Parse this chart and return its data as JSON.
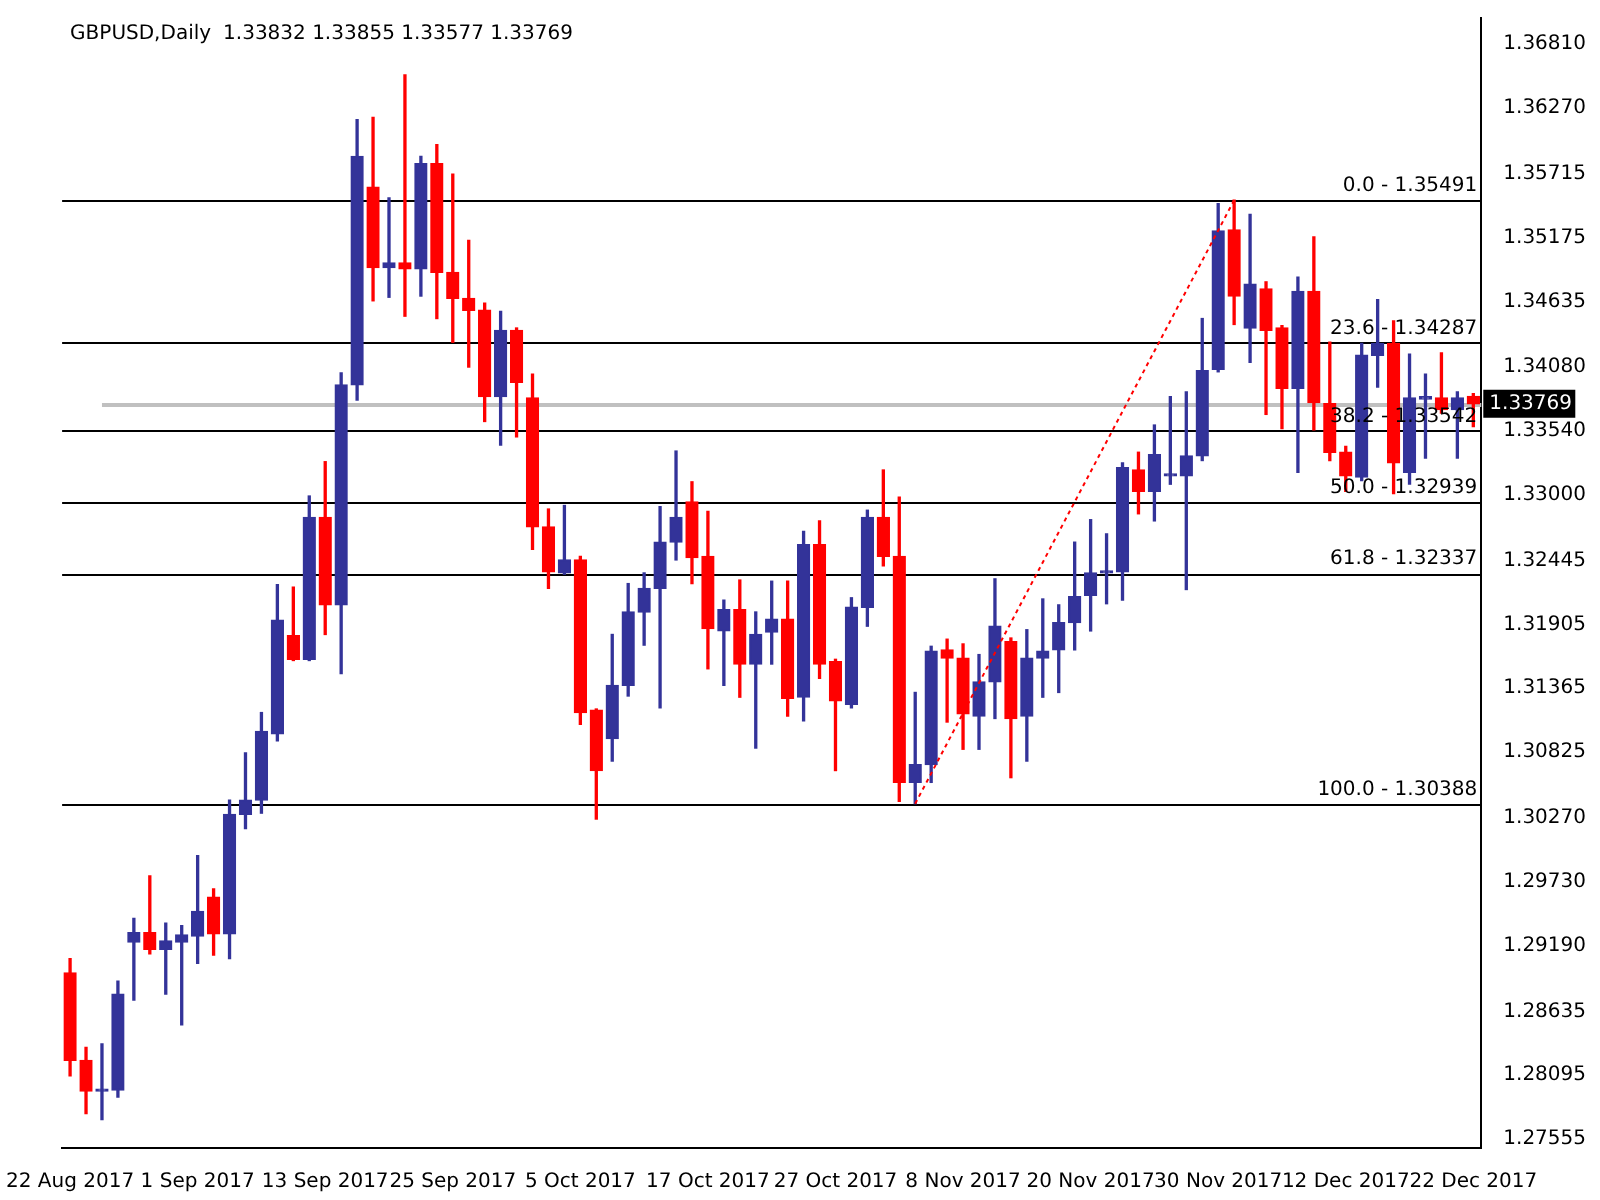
{
  "chart_data": {
    "type": "candlestick",
    "title": "GBPUSD,Daily",
    "subtitle": "1.33832 1.33855 1.33577 1.33769",
    "categories": [
      "22 Aug 2017",
      null,
      null,
      null,
      null,
      null,
      null,
      null,
      "1 Sep 2017",
      null,
      null,
      null,
      null,
      null,
      null,
      null,
      "13 Sep 2017",
      null,
      null,
      null,
      null,
      null,
      null,
      null,
      "25 Sep 2017",
      null,
      null,
      null,
      null,
      null,
      null,
      null,
      "5 Oct 2017",
      null,
      null,
      null,
      null,
      null,
      null,
      null,
      "17 Oct 2017",
      null,
      null,
      null,
      null,
      null,
      null,
      null,
      "27 Oct 2017",
      null,
      null,
      null,
      null,
      null,
      null,
      null,
      "8 Nov 2017",
      null,
      null,
      null,
      null,
      null,
      null,
      null,
      "20 Nov 2017",
      null,
      null,
      null,
      null,
      null,
      null,
      null,
      "30 Nov 2017",
      null,
      null,
      null,
      null,
      null,
      null,
      null,
      "12 Dec 2017",
      null,
      null,
      null,
      null,
      null,
      null,
      null,
      "22 Dec 2017"
    ],
    "ohlc": [
      [
        1.2896,
        1.2908,
        1.2809,
        1.2822
      ],
      [
        1.2822,
        1.2833,
        1.2777,
        1.2796
      ],
      [
        1.2796,
        1.2836,
        1.2772,
        1.2797
      ],
      [
        1.2797,
        1.2889,
        1.2791,
        1.2878
      ],
      [
        1.2922,
        1.2942,
        1.2873,
        1.293
      ],
      [
        1.293,
        1.2978,
        1.2912,
        1.2916
      ],
      [
        1.2916,
        1.2938,
        1.2878,
        1.2923
      ],
      [
        1.2922,
        1.2936,
        1.2852,
        1.2928
      ],
      [
        1.2927,
        1.2995,
        1.2904,
        1.2948
      ],
      [
        1.296,
        1.2967,
        1.2911,
        1.2929
      ],
      [
        1.2929,
        1.3042,
        1.2908,
        1.303
      ],
      [
        1.303,
        1.3082,
        1.3018,
        1.3042
      ],
      [
        1.3042,
        1.3116,
        1.3031,
        1.31
      ],
      [
        1.3098,
        1.3224,
        1.3092,
        1.3194
      ],
      [
        1.3181,
        1.3222,
        1.316,
        1.3161
      ],
      [
        1.3161,
        1.3299,
        1.316,
        1.3281
      ],
      [
        1.3281,
        1.3328,
        1.3182,
        1.3207
      ],
      [
        1.3207,
        1.3403,
        1.3149,
        1.3393
      ],
      [
        1.3393,
        1.3617,
        1.338,
        1.3586
      ],
      [
        1.356,
        1.3619,
        1.3464,
        1.3492
      ],
      [
        1.3492,
        1.3551,
        1.3467,
        1.3496
      ],
      [
        1.3496,
        1.3655,
        1.3451,
        1.3491
      ],
      [
        1.3491,
        1.3586,
        1.3468,
        1.358
      ],
      [
        1.358,
        1.3596,
        1.3449,
        1.3488
      ],
      [
        1.3488,
        1.3571,
        1.3429,
        1.3466
      ],
      [
        1.3466,
        1.3515,
        1.3408,
        1.3456
      ],
      [
        1.3456,
        1.3462,
        1.3362,
        1.3383
      ],
      [
        1.3383,
        1.3455,
        1.3342,
        1.3439
      ],
      [
        1.3439,
        1.3441,
        1.3349,
        1.3395
      ],
      [
        1.3382,
        1.3402,
        1.3254,
        1.3273
      ],
      [
        1.3273,
        1.3288,
        1.3221,
        1.3235
      ],
      [
        1.3234,
        1.3291,
        1.3233,
        1.3245
      ],
      [
        1.3245,
        1.3248,
        1.3106,
        1.3116
      ],
      [
        1.3118,
        1.3119,
        1.3026,
        1.3067
      ],
      [
        1.3094,
        1.3182,
        1.3075,
        1.3139
      ],
      [
        1.3139,
        1.3225,
        1.313,
        1.3201
      ],
      [
        1.3201,
        1.3234,
        1.3173,
        1.3221
      ],
      [
        1.3221,
        1.329,
        1.312,
        1.326
      ],
      [
        1.326,
        1.3337,
        1.3245,
        1.3281
      ],
      [
        1.3294,
        1.3311,
        1.3225,
        1.3247
      ],
      [
        1.3248,
        1.3286,
        1.3153,
        1.3187
      ],
      [
        1.3185,
        1.3211,
        1.3139,
        1.3203
      ],
      [
        1.3203,
        1.3228,
        1.3129,
        1.3157
      ],
      [
        1.3157,
        1.3201,
        1.3086,
        1.3182
      ],
      [
        1.3184,
        1.3227,
        1.3157,
        1.3195
      ],
      [
        1.3195,
        1.3227,
        1.3113,
        1.3128
      ],
      [
        1.3129,
        1.3269,
        1.3109,
        1.3258
      ],
      [
        1.3258,
        1.3278,
        1.3145,
        1.3157
      ],
      [
        1.3159,
        1.3161,
        1.3067,
        1.3126
      ],
      [
        1.3123,
        1.3213,
        1.312,
        1.3205
      ],
      [
        1.3205,
        1.3287,
        1.3189,
        1.3281
      ],
      [
        1.3281,
        1.3321,
        1.324,
        1.3248
      ],
      [
        1.3248,
        1.3298,
        1.3041,
        1.3057
      ],
      [
        1.3057,
        1.3133,
        1.3039,
        1.3072
      ],
      [
        1.3072,
        1.3172,
        1.3057,
        1.3168
      ],
      [
        1.3169,
        1.3178,
        1.3108,
        1.3162
      ],
      [
        1.3162,
        1.3174,
        1.3085,
        1.3115
      ],
      [
        1.3113,
        1.3165,
        1.3085,
        1.3142
      ],
      [
        1.3142,
        1.3229,
        1.3111,
        1.3189
      ],
      [
        1.3176,
        1.3179,
        1.3061,
        1.3111
      ],
      [
        1.3113,
        1.3186,
        1.3075,
        1.3162
      ],
      [
        1.3162,
        1.3212,
        1.3129,
        1.3168
      ],
      [
        1.3169,
        1.3207,
        1.3133,
        1.3192
      ],
      [
        1.3192,
        1.326,
        1.3169,
        1.3214
      ],
      [
        1.3215,
        1.3279,
        1.3185,
        1.3234
      ],
      [
        1.3234,
        1.3267,
        1.3208,
        1.3235
      ],
      [
        1.3235,
        1.3327,
        1.3211,
        1.3323
      ],
      [
        1.3321,
        1.3336,
        1.3284,
        1.3303
      ],
      [
        1.3303,
        1.3359,
        1.3278,
        1.3334
      ],
      [
        1.3316,
        1.3383,
        1.3309,
        1.3317
      ],
      [
        1.3316,
        1.3387,
        1.322,
        1.3333
      ],
      [
        1.3333,
        1.3449,
        1.3329,
        1.3405
      ],
      [
        1.3406,
        1.3546,
        1.3404,
        1.3523
      ],
      [
        1.3524,
        1.3549,
        1.3444,
        1.3468
      ],
      [
        1.3441,
        1.3537,
        1.3412,
        1.3478
      ],
      [
        1.3474,
        1.348,
        1.3368,
        1.3439
      ],
      [
        1.3441,
        1.3443,
        1.3356,
        1.339
      ],
      [
        1.339,
        1.3484,
        1.3319,
        1.3472
      ],
      [
        1.3472,
        1.3518,
        1.3355,
        1.3378
      ],
      [
        1.3377,
        1.3429,
        1.3329,
        1.3336
      ],
      [
        1.3336,
        1.3341,
        1.3303,
        1.3316
      ],
      [
        1.3315,
        1.3428,
        1.3312,
        1.3418
      ],
      [
        1.3418,
        1.3465,
        1.3391,
        1.3428
      ],
      [
        1.3428,
        1.3447,
        1.3301,
        1.3327
      ],
      [
        1.3319,
        1.3419,
        1.3309,
        1.3382
      ],
      [
        1.3381,
        1.3402,
        1.3331,
        1.3383
      ],
      [
        1.3382,
        1.342,
        1.3369,
        1.3372
      ],
      [
        1.3372,
        1.3387,
        1.3331,
        1.3382
      ],
      [
        1.33832,
        1.33855,
        1.33577,
        1.33769
      ]
    ],
    "colors": [
      "#ff0000",
      "#ff0000",
      "#333399",
      "#333399",
      "#333399",
      "#ff0000",
      "#333399",
      "#333399",
      "#333399",
      "#ff0000",
      "#333399",
      "#333399",
      "#333399",
      "#333399",
      "#ff0000",
      "#333399",
      "#ff0000",
      "#333399",
      "#333399",
      "#ff0000",
      "#333399",
      "#ff0000",
      "#333399",
      "#ff0000",
      "#ff0000",
      "#ff0000",
      "#ff0000",
      "#333399",
      "#ff0000",
      "#ff0000",
      "#ff0000",
      "#333399",
      "#ff0000",
      "#ff0000",
      "#333399",
      "#333399",
      "#333399",
      "#333399",
      "#333399",
      "#ff0000",
      "#ff0000",
      "#333399",
      "#ff0000",
      "#333399",
      "#333399",
      "#ff0000",
      "#333399",
      "#ff0000",
      "#ff0000",
      "#333399",
      "#333399",
      "#ff0000",
      "#ff0000",
      "#333399",
      "#333399",
      "#ff0000",
      "#ff0000",
      "#333399",
      "#333399",
      "#ff0000",
      "#333399",
      "#333399",
      "#333399",
      "#333399",
      "#333399",
      "#333399",
      "#333399",
      "#ff0000",
      "#333399",
      "#333399",
      "#333399",
      "#333399",
      "#333399",
      "#ff0000",
      "#333399",
      "#ff0000",
      "#ff0000",
      "#333399",
      "#ff0000",
      "#ff0000",
      "#ff0000",
      "#333399",
      "#333399",
      "#ff0000",
      "#333399",
      "#333399",
      "#ff0000",
      "#333399",
      "#ff0000"
    ],
    "series": [
      {
        "type": "line",
        "color": "#ff0000",
        "line_style": "dotted",
        "marker": "none",
        "values": [
          null,
          null,
          null,
          null,
          null,
          null,
          null,
          null,
          null,
          null,
          null,
          null,
          null,
          null,
          null,
          null,
          null,
          null,
          null,
          null,
          null,
          null,
          null,
          null,
          null,
          null,
          null,
          null,
          null,
          null,
          null,
          null,
          null,
          null,
          null,
          null,
          null,
          null,
          null,
          null,
          null,
          null,
          null,
          null,
          null,
          null,
          null,
          null,
          null,
          null,
          null,
          null,
          null,
          1.3039,
          null,
          null,
          null,
          null,
          null,
          null,
          null,
          null,
          null,
          null,
          null,
          null,
          null,
          null,
          null,
          null,
          null,
          null,
          null,
          1.3549,
          null,
          null,
          null,
          null,
          null,
          null,
          null,
          null,
          null,
          null,
          null,
          null,
          null,
          null,
          null
        ]
      }
    ],
    "ylim": [
      1.2748,
      1.3703
    ],
    "yticks": [
      {
        "value": 1.3681,
        "label": "1.36810"
      },
      {
        "value": 1.3627,
        "label": "1.36270"
      },
      {
        "value": 1.35715,
        "label": "1.35715"
      },
      {
        "value": 1.35175,
        "label": "1.35175"
      },
      {
        "value": 1.34635,
        "label": "1.34635"
      },
      {
        "value": 1.3408,
        "label": "1.34080"
      },
      {
        "value": 1.3354,
        "label": "1.33540"
      },
      {
        "value": 1.33,
        "label": "1.33000"
      },
      {
        "value": 1.32445,
        "label": "1.32445"
      },
      {
        "value": 1.31905,
        "label": "1.31905"
      },
      {
        "value": 1.31365,
        "label": "1.31365"
      },
      {
        "value": 1.30825,
        "label": "1.30825"
      },
      {
        "value": 1.3027,
        "label": "1.30270"
      },
      {
        "value": 1.2973,
        "label": "1.29730"
      },
      {
        "value": 1.2919,
        "label": "1.29190"
      },
      {
        "value": 1.28635,
        "label": "1.28635"
      },
      {
        "value": 1.28095,
        "label": "1.28095"
      },
      {
        "value": 1.27555,
        "label": "1.27555"
      }
    ],
    "grid": false,
    "legend": false,
    "ref_lines": [
      {
        "axis": "y",
        "value": 1.33769,
        "label": "1.33769",
        "color": "#c0c0c0"
      },
      {
        "axis": "y",
        "value": 1.35491,
        "color": "#000000"
      },
      {
        "axis": "y",
        "value": 1.34287,
        "color": "#000000"
      },
      {
        "axis": "y",
        "value": 1.33542,
        "color": "#000000"
      },
      {
        "axis": "y",
        "value": 1.32939,
        "color": "#000000"
      },
      {
        "axis": "y",
        "value": 1.32337,
        "color": "#000000"
      },
      {
        "axis": "y",
        "value": 1.30388,
        "color": "#000000"
      }
    ],
    "annotations": [
      {
        "text": "0.0 - 1.35491",
        "y": 1.35491
      },
      {
        "text": "23.6 - 1.34287",
        "y": 1.34287
      },
      {
        "text": "38.2 - 1.33542",
        "y": 1.33542
      },
      {
        "text": "50.0 - 1.32939",
        "y": 1.32939
      },
      {
        "text": "61.8 - 1.32337",
        "y": 1.32337
      },
      {
        "text": "100.0 - 1.30388",
        "y": 1.30388
      }
    ]
  }
}
